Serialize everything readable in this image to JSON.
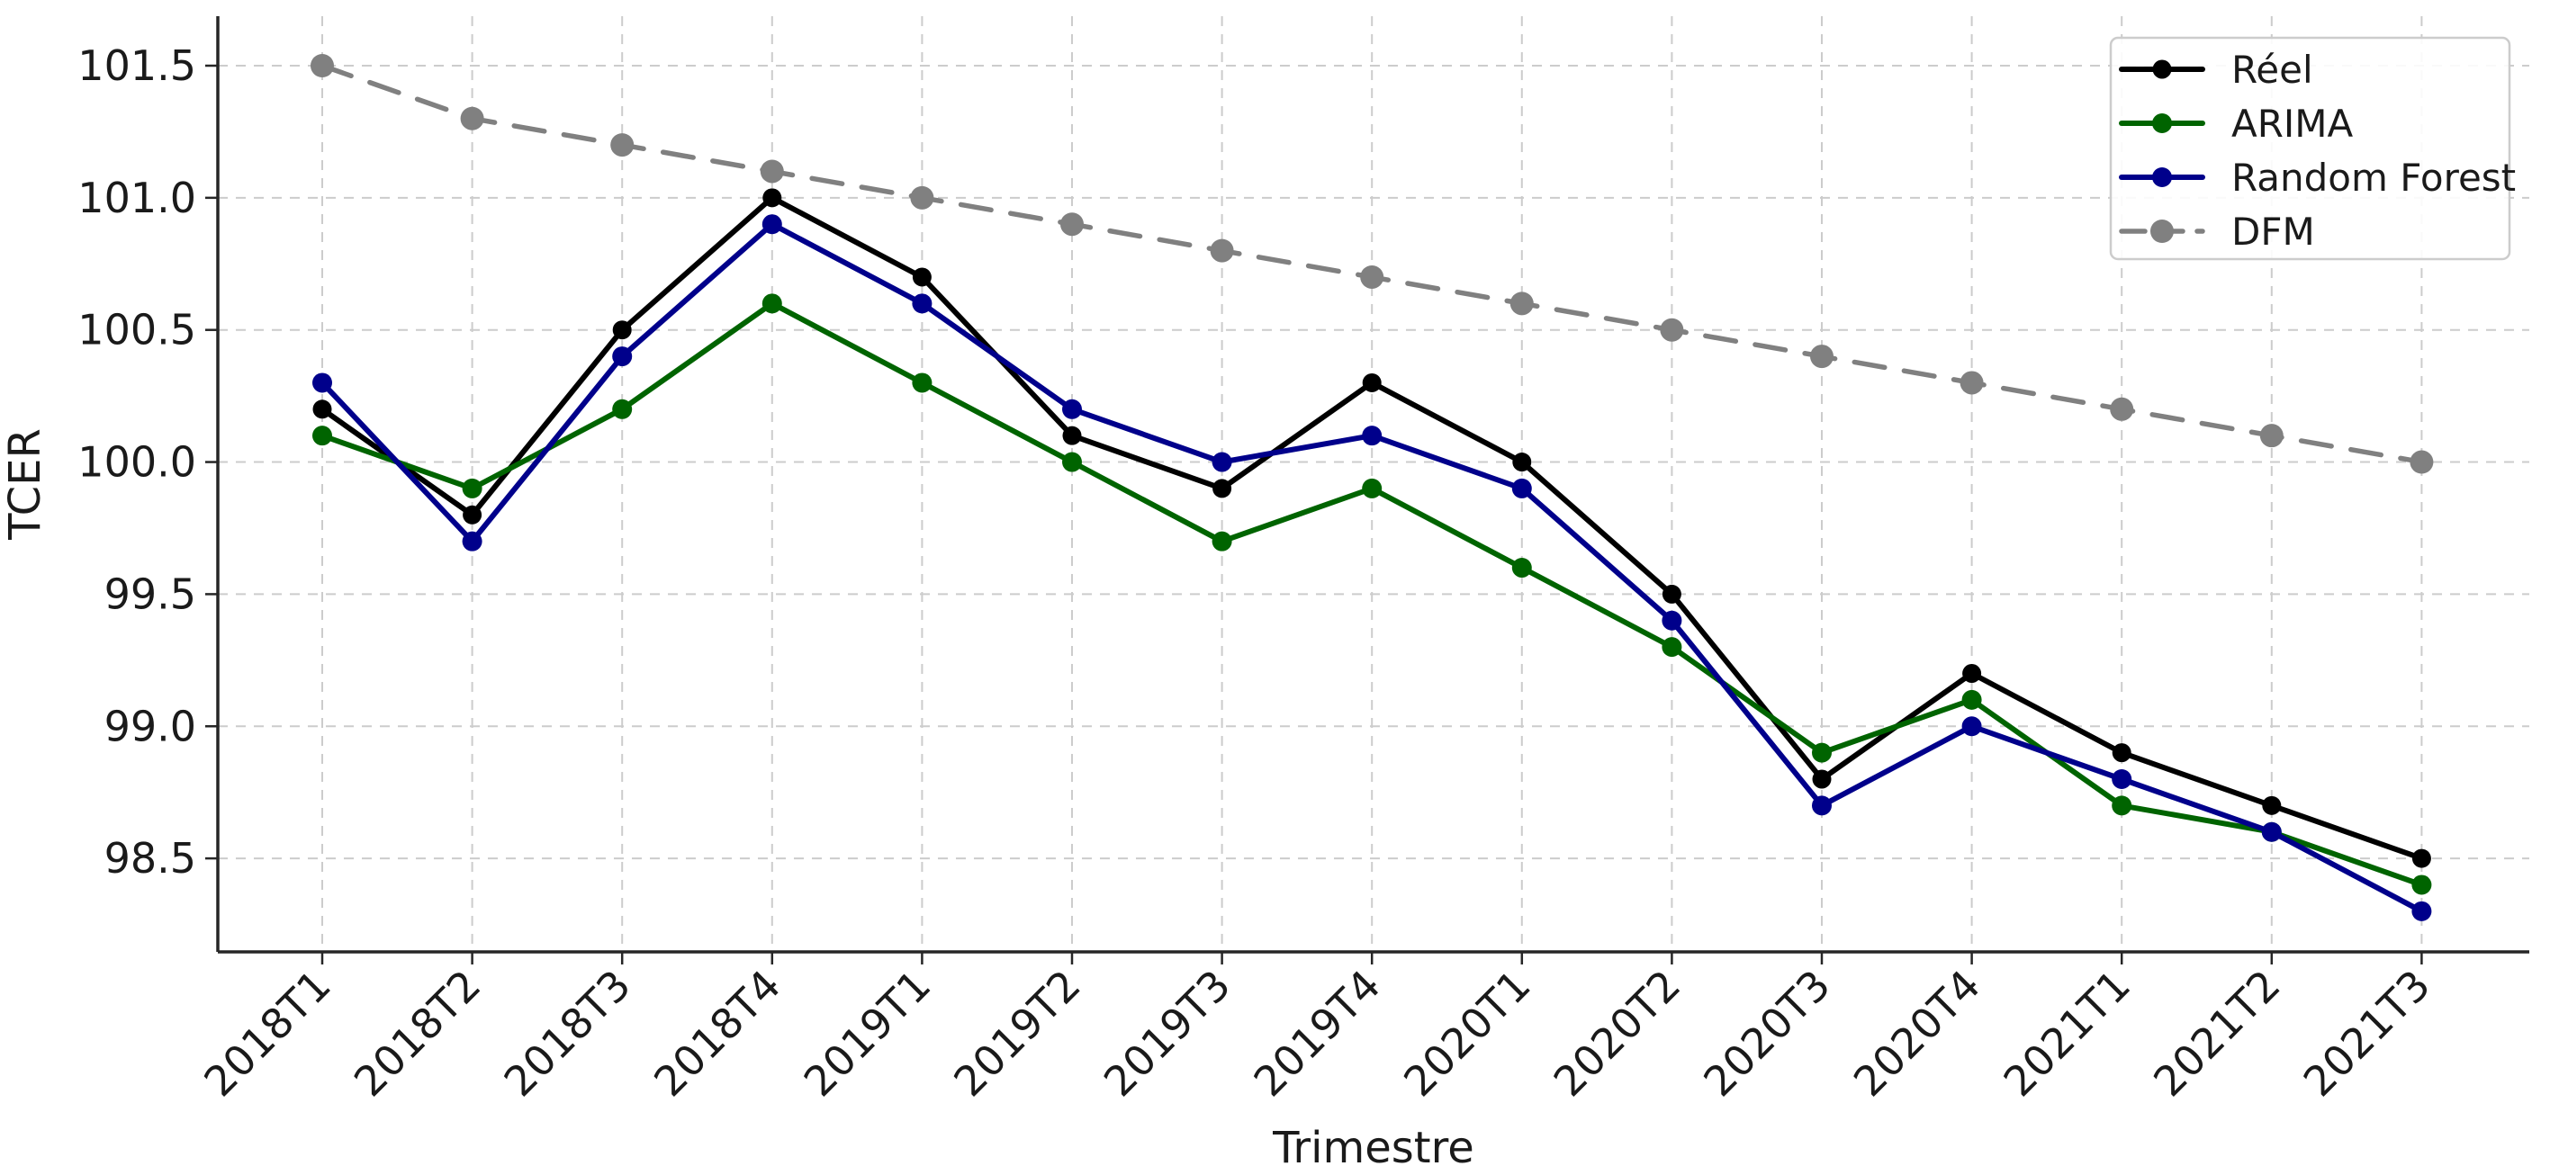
{
  "chart_data": {
    "type": "line",
    "title": "",
    "xlabel": "Trimestre",
    "ylabel": "TCER",
    "categories": [
      "2018T1",
      "2018T2",
      "2018T3",
      "2018T4",
      "2019T1",
      "2019T2",
      "2019T3",
      "2019T4",
      "2020T1",
      "2020T2",
      "2020T3",
      "2020T4",
      "2021T1",
      "2021T2",
      "2021T3"
    ],
    "series": [
      {
        "name": "Réel",
        "color": "#000000",
        "line_style": "solid",
        "marker": "circle",
        "marker_size": 10.5,
        "values": [
          100.2,
          99.8,
          100.5,
          101.0,
          100.7,
          100.1,
          99.9,
          100.3,
          100.0,
          99.5,
          98.8,
          99.2,
          98.9,
          98.7,
          98.5
        ]
      },
      {
        "name": "ARIMA",
        "color": "#006400",
        "line_style": "solid",
        "marker": "circle",
        "marker_size": 11,
        "values": [
          100.1,
          99.9,
          100.2,
          100.6,
          100.3,
          100.0,
          99.7,
          99.9,
          99.6,
          99.3,
          98.9,
          99.1,
          98.7,
          98.6,
          98.4
        ]
      },
      {
        "name": "Random Forest",
        "color": "#00008B",
        "line_style": "solid",
        "marker": "circle",
        "marker_size": 11,
        "values": [
          100.3,
          99.7,
          100.4,
          100.9,
          100.6,
          100.2,
          100.0,
          100.1,
          99.9,
          99.4,
          98.7,
          99.0,
          98.8,
          98.6,
          98.3
        ]
      },
      {
        "name": "DFM",
        "color": "#808080",
        "line_style": "dashed",
        "marker": "circle",
        "marker_size": 13,
        "values": [
          101.5,
          101.3,
          101.2,
          101.1,
          101.0,
          100.9,
          100.8,
          100.7,
          100.6,
          100.5,
          100.4,
          100.3,
          100.2,
          100.1,
          100.0
        ]
      }
    ],
    "yticks": [
      98.5,
      99.0,
      99.5,
      100.0,
      100.5,
      101.0,
      101.5
    ],
    "ylim": [
      98.15,
      101.69
    ],
    "x_tick_rotation": 45,
    "grid": true,
    "grid_color": "#cccccc",
    "axis_color": "#262626",
    "legend_position": "upper right"
  }
}
